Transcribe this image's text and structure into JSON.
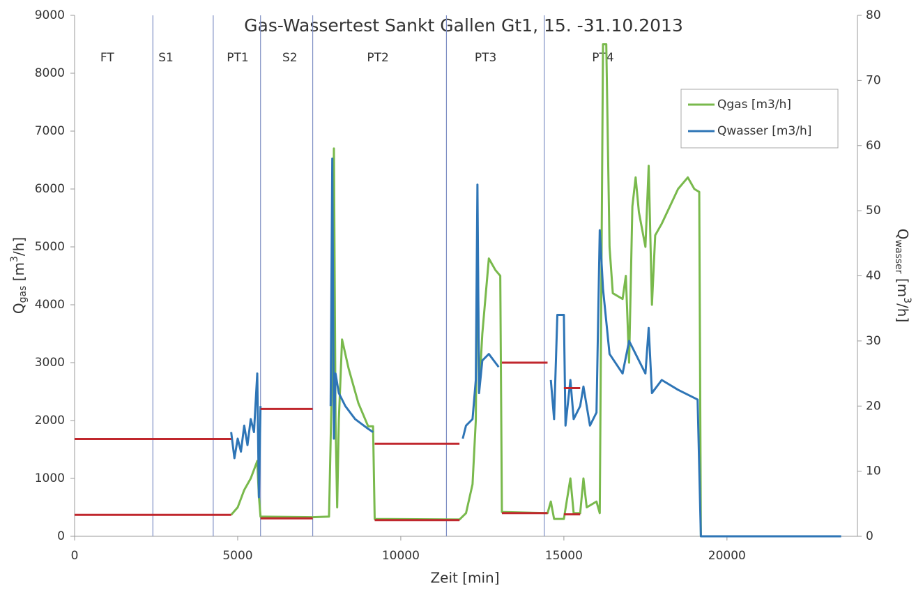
{
  "chart_data": {
    "type": "line",
    "title": "Gas-Wassertest Sankt Gallen Gt1, 15. -31.10.2013",
    "xlabel": "Zeit [min]",
    "ylabel": {
      "main": "Q",
      "sub": "gas",
      "rest": " [m",
      "sup": "3",
      "end": "/h]"
    },
    "y2label": {
      "main": "Q",
      "sub": "wasser",
      "rest": " [m",
      "sup": "3",
      "end": "/h]"
    },
    "xlim": [
      0,
      24000
    ],
    "xticks": [
      0,
      5000,
      10000,
      15000,
      20000
    ],
    "ylim": [
      0,
      9000
    ],
    "yticks": [
      0,
      1000,
      2000,
      3000,
      4000,
      5000,
      6000,
      7000,
      8000,
      9000
    ],
    "y2lim": [
      0,
      80
    ],
    "y2ticks": [
      0,
      10,
      20,
      30,
      40,
      50,
      60,
      70,
      80
    ],
    "legend": "top-right",
    "phase_lines": [
      2400,
      4250,
      5700,
      7300,
      11400,
      14400
    ],
    "phases": [
      {
        "label": "FT",
        "x": 1000
      },
      {
        "label": "S1",
        "x": 2800
      },
      {
        "label": "PT1",
        "x": 5000
      },
      {
        "label": "S2",
        "x": 6600
      },
      {
        "label": "PT2",
        "x": 9300
      },
      {
        "label": "PT3",
        "x": 12600
      },
      {
        "label": "PT4",
        "x": 16200
      }
    ],
    "segments_color": "#c0272d",
    "segments": [
      {
        "x": [
          0,
          4800
        ],
        "y": 370
      },
      {
        "x": [
          0,
          4800
        ],
        "y": 1680
      },
      {
        "x": [
          5700,
          7300
        ],
        "y": 2200
      },
      {
        "x": [
          5700,
          7300
        ],
        "y": 310
      },
      {
        "x": [
          9200,
          11800
        ],
        "y": 1600
      },
      {
        "x": [
          9200,
          11800
        ],
        "y": 280
      },
      {
        "x": [
          13100,
          14500
        ],
        "y": 3000
      },
      {
        "x": [
          13100,
          14500
        ],
        "y": 400
      },
      {
        "x": [
          15000,
          15500
        ],
        "y": 2560
      },
      {
        "x": [
          15000,
          15500
        ],
        "y": 380
      }
    ],
    "series": [
      {
        "name": "Qgas [m3/h]",
        "color": "#79b94c",
        "x": [
          4800,
          5000,
          5200,
          5400,
          5600,
          5650,
          5700,
          7300,
          7800,
          7900,
          7950,
          8000,
          8050,
          8100,
          8200,
          8400,
          8700,
          9000,
          9150,
          9200,
          11800,
          12000,
          12200,
          12300,
          12350,
          12400,
          12500,
          12700,
          12900,
          13050,
          13100,
          14500,
          14600,
          14700,
          15000,
          15200,
          15300,
          15500,
          15600,
          15700,
          16000,
          16100,
          16200,
          16300,
          16400,
          16500,
          16800,
          16900,
          17000,
          17100,
          17200,
          17300,
          17500,
          17600,
          17700,
          17800,
          18000,
          18500,
          18800,
          19000,
          19150,
          19200
        ],
        "values": [
          370,
          500,
          800,
          1000,
          1300,
          700,
          340,
          330,
          340,
          3000,
          6700,
          2000,
          500,
          2000,
          3400,
          2900,
          2300,
          1900,
          1900,
          300,
          290,
          400,
          900,
          2000,
          5500,
          2500,
          3500,
          4800,
          4600,
          4500,
          420,
          400,
          600,
          300,
          300,
          1000,
          400,
          400,
          1000,
          500,
          600,
          400,
          8500,
          8500,
          5000,
          4200,
          4100,
          4500,
          3000,
          5700,
          6200,
          5600,
          5000,
          6400,
          4000,
          5200,
          5400,
          6000,
          6200,
          6000,
          5950,
          0
        ]
      },
      {
        "name": "Qwasser [m3/h]",
        "color": "#2e75b6",
        "axis": "y2",
        "x": [
          4800,
          4900,
          5000,
          5100,
          5200,
          5300,
          5400,
          5500,
          5600,
          5650,
          5700,
          7300,
          7850,
          7900,
          7950,
          8000,
          8100,
          8300,
          8600,
          9000,
          9150,
          9200,
          11900,
          12000,
          12200,
          12300,
          12350,
          12400,
          12500,
          12700,
          13000,
          13100,
          14600,
          14700,
          14800,
          15000,
          15050,
          15200,
          15300,
          15500,
          15600,
          15800,
          16000,
          16100,
          16200,
          16400,
          16800,
          17000,
          17200,
          17500,
          17600,
          17700,
          18000,
          18500,
          19100,
          19200,
          23500
        ],
        "values": [
          16,
          12,
          15,
          13,
          17,
          14,
          18,
          16,
          25,
          6,
          20,
          null,
          20,
          58,
          15,
          25,
          22,
          20,
          18,
          16.5,
          16,
          null,
          15,
          17,
          18,
          24,
          54,
          22,
          27,
          28,
          26,
          null,
          24,
          18,
          34,
          34,
          17,
          24,
          18,
          20,
          23,
          17,
          19,
          47,
          38,
          28,
          25,
          30,
          28,
          25,
          32,
          22,
          24,
          22.5,
          21,
          0,
          0
        ]
      }
    ]
  }
}
